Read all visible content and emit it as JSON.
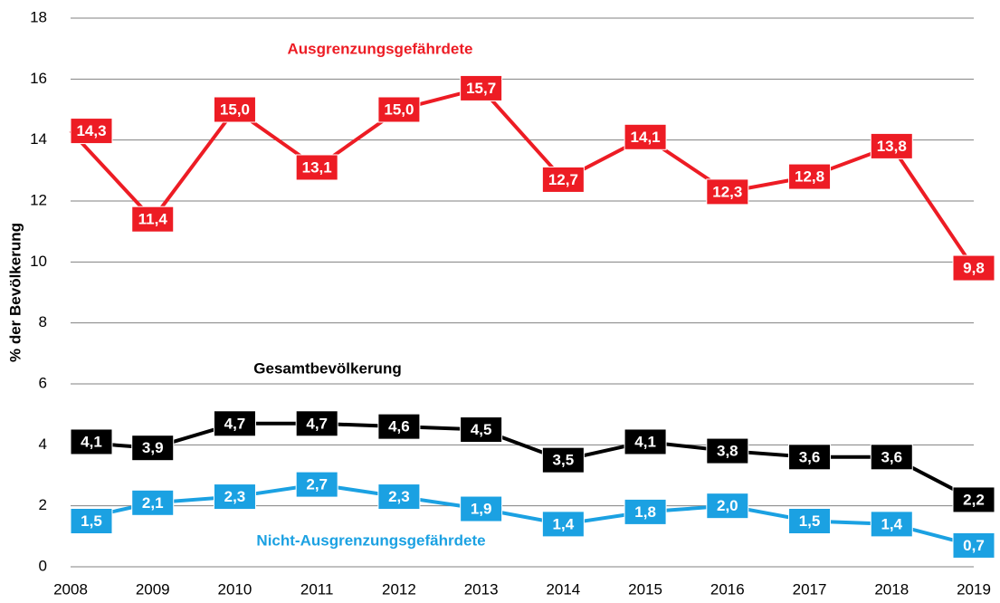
{
  "chart_data": {
    "type": "line",
    "y_label": "% der Bevölkerung",
    "x": [
      2008,
      2009,
      2010,
      2011,
      2012,
      2013,
      2014,
      2015,
      2016,
      2017,
      2018,
      2019
    ],
    "xlim": [
      2008,
      2019
    ],
    "xticks": [
      2008,
      2009,
      2010,
      2011,
      2012,
      2013,
      2014,
      2015,
      2016,
      2017,
      2018,
      2019
    ],
    "ylim": [
      0,
      18
    ],
    "yticks": [
      0,
      2,
      4,
      6,
      8,
      10,
      12,
      14,
      16,
      18
    ],
    "grid": true,
    "series": [
      {
        "name": "Ausgrenzungsgefährdete",
        "color": "#ed1c24",
        "values": [
          14.3,
          11.4,
          15.0,
          13.1,
          15.0,
          15.7,
          12.7,
          14.1,
          12.3,
          12.8,
          13.8,
          9.8
        ],
        "value_labels": [
          "14,3",
          "11,4",
          "15,0",
          "13,1",
          "15,0",
          "15,7",
          "12,7",
          "14,1",
          "12,3",
          "12,8",
          "13,8",
          "9,8"
        ]
      },
      {
        "name": "Gesamtbevölkerung",
        "color": "#000000",
        "values": [
          4.1,
          3.9,
          4.7,
          4.7,
          4.6,
          4.5,
          3.5,
          4.1,
          3.8,
          3.6,
          3.6,
          2.2
        ],
        "value_labels": [
          "4,1",
          "3,9",
          "4,7",
          "4,7",
          "4,6",
          "4,5",
          "3,5",
          "4,1",
          "3,8",
          "3,6",
          "3,6",
          "2,2"
        ]
      },
      {
        "name": "Nicht-Ausgrenzungsgefährdete",
        "color": "#1ba1e2",
        "values": [
          1.5,
          2.1,
          2.3,
          2.7,
          2.3,
          1.9,
          1.4,
          1.8,
          2.0,
          1.5,
          1.4,
          0.7
        ],
        "value_labels": [
          "1,5",
          "2,1",
          "2,3",
          "2,7",
          "2,3",
          "1,9",
          "1,4",
          "1,8",
          "2,0",
          "1,5",
          "1,4",
          "0,7"
        ]
      }
    ]
  }
}
